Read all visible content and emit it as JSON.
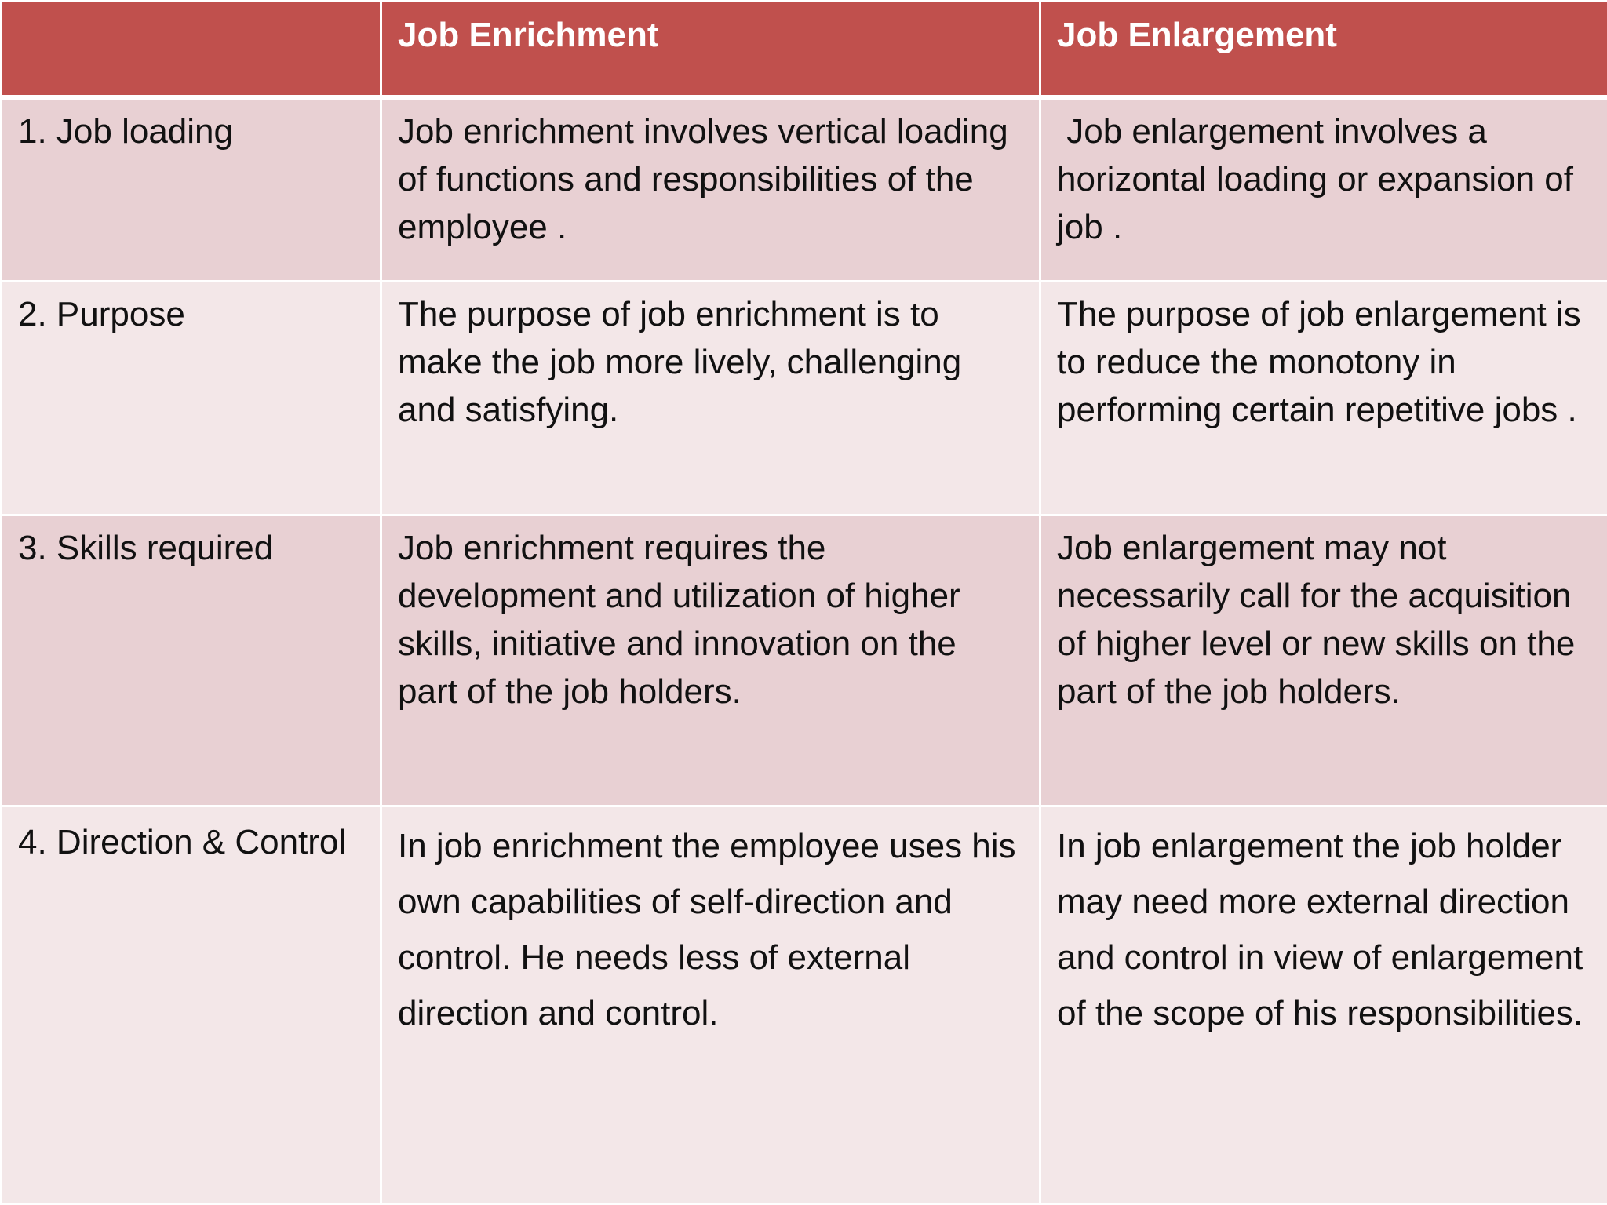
{
  "table": {
    "headers": [
      "",
      "Job Enrichment",
      "Job Enlargement"
    ],
    "rows": [
      {
        "label": "1. Job loading",
        "enrichment": "Job enrichment involves vertical loading of functions and responsibilities of the employee .",
        "enlargement": " Job enlargement involves a horizontal loading or expansion of job ."
      },
      {
        "label": "2. Purpose",
        "enrichment": "The purpose of job enrichment is to make the job more lively, challenging and satisfying.",
        "enlargement": "The purpose of job enlargement is to reduce the monotony in performing certain repetitive jobs ."
      },
      {
        "label": "3. Skills required",
        "enrichment": "Job enrichment requires the development and utilization of higher skills, initiative and innovation on the part of the job holders.",
        "enlargement": "Job enlargement may not necessarily call for the acquisition of higher level or new skills on the part of the job holders."
      },
      {
        "label": "4. Direction & Control",
        "enrichment": "In job enrichment the employee uses his own capabilities of self-direction and control. He needs less of external direction and control.",
        "enlargement": "In job enlargement the job holder may need more external direction and control in view of enlargement of the scope of his responsibilities."
      }
    ]
  },
  "colors": {
    "header_bg": "#c0504d",
    "header_text": "#ffffff",
    "row_dark": "#e8d0d3",
    "row_light": "#f3e7e8"
  }
}
